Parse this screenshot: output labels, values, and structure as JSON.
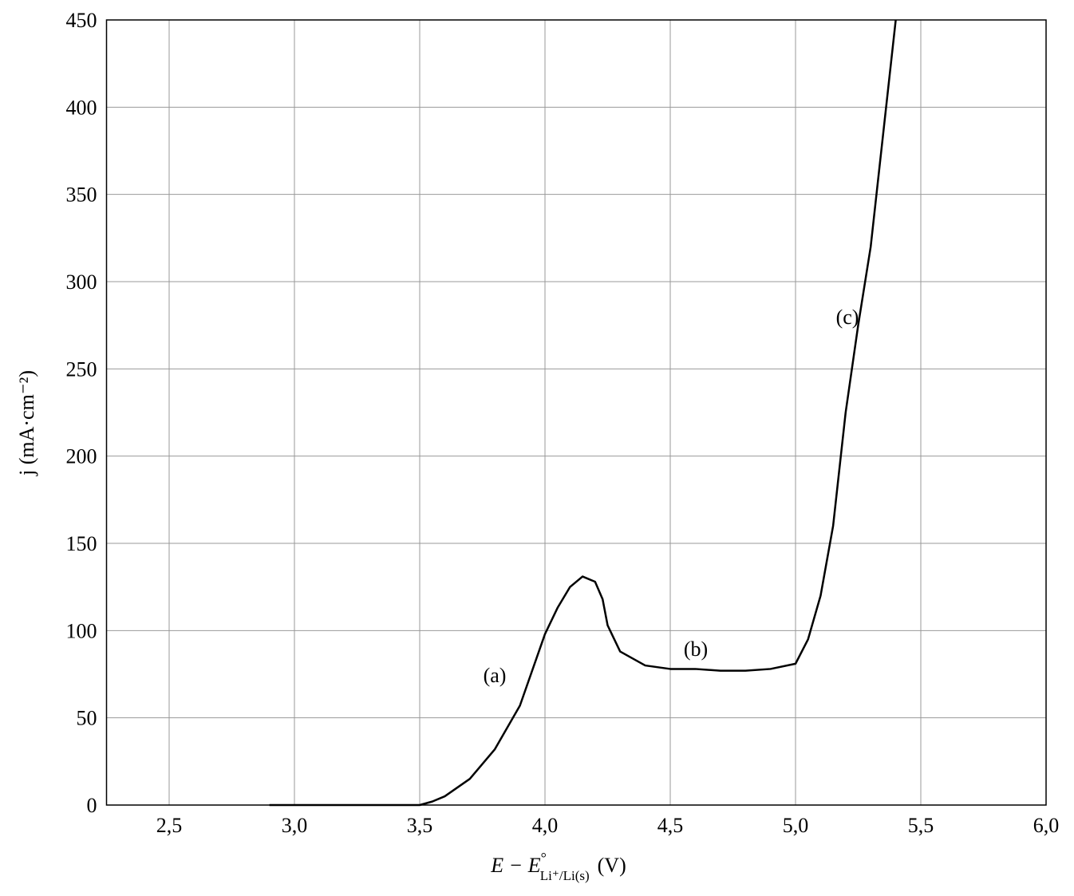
{
  "chart_data": {
    "type": "line",
    "xlabel": {
      "main": "E − E",
      "sup": "°",
      "sub": "Li⁺/Li(s)",
      "unit": "(V)"
    },
    "ylabel": "j (mA·cm⁻²)",
    "x": [
      2.9,
      3.0,
      3.5,
      3.55,
      3.6,
      3.7,
      3.8,
      3.9,
      4.0,
      4.05,
      4.1,
      4.15,
      4.2,
      4.23,
      4.25,
      4.3,
      4.4,
      4.5,
      4.6,
      4.7,
      4.8,
      4.9,
      5.0,
      5.05,
      5.1,
      5.15,
      5.2,
      5.25,
      5.3,
      5.35,
      5.4
    ],
    "series": [
      {
        "color": "#000000",
        "values": [
          0,
          0,
          0,
          2,
          5,
          15,
          32,
          57,
          98,
          113,
          125,
          131,
          128,
          118,
          103,
          88,
          80,
          78,
          78,
          77,
          77,
          78,
          81,
          95,
          120,
          160,
          225,
          275,
          320,
          385,
          450
        ]
      }
    ],
    "annotations": [
      "(a)",
      "(b)",
      "(c)"
    ],
    "xlim": [
      2.25,
      6.0
    ],
    "ylim": [
      0,
      450
    ],
    "xticks": [
      {
        "value": 2.5,
        "label": "2,5"
      },
      {
        "value": 3.0,
        "label": "3,0"
      },
      {
        "value": 3.5,
        "label": "3,5"
      },
      {
        "value": 4.0,
        "label": "4,0"
      },
      {
        "value": 4.5,
        "label": "4,5"
      },
      {
        "value": 5.0,
        "label": "5,0"
      },
      {
        "value": 5.5,
        "label": "5,5"
      },
      {
        "value": 6.0,
        "label": "6,0"
      }
    ],
    "yticks": [
      0,
      50,
      100,
      150,
      200,
      250,
      300,
      350,
      400,
      450
    ],
    "grid": true
  }
}
